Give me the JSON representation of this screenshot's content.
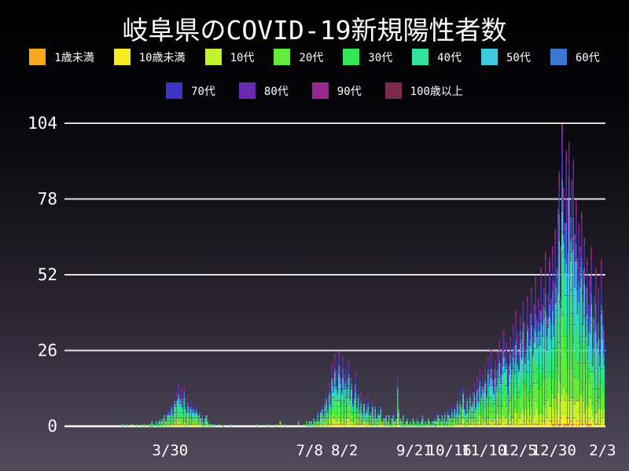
{
  "chart": {
    "title": "岐阜県のCOVID-19新規陽性者数"
  },
  "chart_data": {
    "type": "bar",
    "stacked": true,
    "title": "岐阜県のCOVID-19新規陽性者数",
    "xlabel": "",
    "ylabel": "",
    "ylim": [
      0,
      108
    ],
    "y_ticks": [
      0,
      26,
      52,
      78,
      104
    ],
    "grid": true,
    "legend_position": "top",
    "x_span_days": 386,
    "x_ticks": [
      {
        "label": "3/30",
        "day": 74
      },
      {
        "label": "7/8",
        "day": 174
      },
      {
        "label": "8/2",
        "day": 199
      },
      {
        "label": "9/21",
        "day": 249
      },
      {
        "label": "10/16",
        "day": 274
      },
      {
        "label": "11/10",
        "day": 299
      },
      {
        "label": "12/5",
        "day": 324
      },
      {
        "label": "12/30",
        "day": 349
      },
      {
        "label": "2/3",
        "day": 384
      }
    ],
    "series": [
      {
        "name": "1歳未満",
        "color": "#F8A81D",
        "fraction": 0.007
      },
      {
        "name": "10歳未満",
        "color": "#F7EC23",
        "fraction": 0.03
      },
      {
        "name": "10代",
        "color": "#C3F22D",
        "fraction": 0.1
      },
      {
        "name": "20代",
        "color": "#64EA3A",
        "fraction": 0.17
      },
      {
        "name": "30代",
        "color": "#35E556",
        "fraction": 0.14
      },
      {
        "name": "40代",
        "color": "#30E39B",
        "fraction": 0.13
      },
      {
        "name": "50代",
        "color": "#3CCBDC",
        "fraction": 0.12
      },
      {
        "name": "60代",
        "color": "#3B78D0",
        "fraction": 0.09
      },
      {
        "name": "70代",
        "color": "#3A35C5",
        "fraction": 0.08
      },
      {
        "name": "80代",
        "color": "#6A28AC",
        "fraction": 0.07
      },
      {
        "name": "90代",
        "color": "#99278F",
        "fraction": 0.045
      },
      {
        "name": "100歳以上",
        "color": "#7C2B4E",
        "fraction": 0.008
      }
    ],
    "daily_totals": [
      0,
      0,
      0,
      0,
      0,
      0,
      0,
      0,
      0,
      0,
      0,
      0,
      0,
      0,
      0,
      0,
      0,
      0,
      0,
      0,
      0,
      0,
      0,
      0,
      0,
      0,
      0,
      0,
      0,
      0,
      0,
      0,
      0,
      0,
      0,
      0,
      0,
      0,
      0,
      0,
      1,
      0,
      0,
      1,
      0,
      0,
      0,
      1,
      0,
      0,
      1,
      0,
      0,
      0,
      1,
      0,
      1,
      0,
      0,
      1,
      1,
      2,
      1,
      0,
      2,
      1,
      2,
      3,
      2,
      3,
      4,
      3,
      5,
      6,
      5,
      8,
      7,
      10,
      9,
      12,
      15,
      11,
      13,
      9,
      14,
      10,
      8,
      11,
      7,
      9,
      6,
      8,
      5,
      7,
      4,
      5,
      3,
      4,
      2,
      3,
      4,
      2,
      1,
      2,
      1,
      0,
      1,
      0,
      0,
      1,
      0,
      0,
      1,
      0,
      0,
      0,
      0,
      0,
      1,
      0,
      0,
      0,
      0,
      0,
      0,
      0,
      0,
      0,
      0,
      0,
      0,
      0,
      0,
      0,
      0,
      0,
      1,
      0,
      0,
      0,
      0,
      0,
      0,
      0,
      1,
      0,
      0,
      0,
      0,
      0,
      1,
      0,
      0,
      2,
      0,
      0,
      1,
      0,
      0,
      0,
      0,
      0,
      0,
      0,
      0,
      0,
      2,
      0,
      0,
      0,
      1,
      0,
      2,
      1,
      3,
      2,
      1,
      4,
      2,
      3,
      5,
      3,
      6,
      8,
      4,
      10,
      12,
      8,
      15,
      11,
      22,
      17,
      25,
      19,
      14,
      26,
      21,
      16,
      24,
      18,
      20,
      15,
      23,
      12,
      17,
      10,
      14,
      19,
      9,
      13,
      8,
      12,
      6,
      10,
      5,
      8,
      11,
      4,
      7,
      9,
      5,
      8,
      3,
      6,
      4,
      7,
      2,
      5,
      3,
      4,
      2,
      4,
      1,
      3,
      5,
      2,
      4,
      18,
      6,
      3,
      2,
      4,
      1,
      2,
      3,
      1,
      2,
      1,
      3,
      2,
      1,
      3,
      2,
      1,
      2,
      4,
      1,
      2,
      1,
      3,
      2,
      1,
      3,
      2,
      4,
      2,
      5,
      3,
      2,
      4,
      3,
      5,
      2,
      6,
      4,
      3,
      7,
      5,
      8,
      6,
      10,
      7,
      12,
      8,
      14,
      9,
      6,
      11,
      8,
      13,
      9,
      12,
      15,
      10,
      17,
      13,
      20,
      14,
      18,
      16,
      21,
      15,
      24,
      18,
      27,
      20,
      16,
      23,
      19,
      26,
      30,
      22,
      27,
      33,
      24,
      29,
      21,
      26,
      31,
      25,
      35,
      28,
      40,
      32,
      26,
      38,
      30,
      43,
      36,
      29,
      45,
      34,
      39,
      48,
      31,
      42,
      52,
      37,
      44,
      40,
      55,
      42,
      48,
      60,
      38,
      46,
      58,
      44,
      62,
      50,
      68,
      55,
      75,
      88,
      62,
      104,
      82,
      70,
      95,
      78,
      98,
      72,
      85,
      92,
      66,
      78,
      58,
      70,
      62,
      74,
      54,
      65,
      48,
      58,
      42,
      52,
      62,
      38,
      45,
      55,
      35,
      48,
      30,
      58,
      40,
      33,
      0
    ]
  }
}
